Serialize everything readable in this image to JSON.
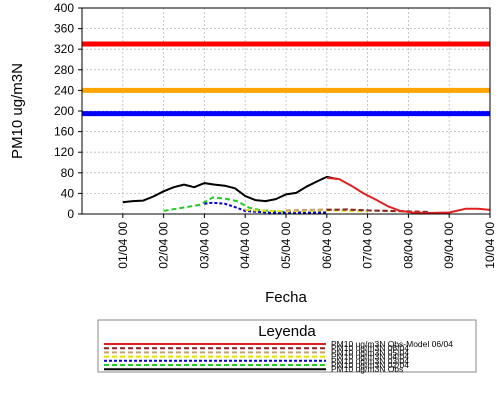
{
  "chart_data": {
    "type": "line",
    "title": "",
    "xlabel": "Fecha",
    "ylabel": "PM10 ug/m3N",
    "ylim": [
      0,
      400
    ],
    "xlim": [
      0,
      10
    ],
    "y_ticks": [
      0,
      40,
      80,
      120,
      160,
      200,
      240,
      280,
      320,
      360,
      400
    ],
    "x_ticks": [
      1,
      2,
      3,
      4,
      5,
      6,
      7,
      8,
      9,
      10
    ],
    "x_tick_labels": [
      "01/04 00",
      "02/04 00",
      "03/04 00",
      "04/04 00",
      "05/04 00",
      "06/04 00",
      "07/04 00",
      "08/04 00",
      "09/04 00",
      "10/04 00"
    ],
    "grid": true,
    "thresholds": [
      {
        "value": 330,
        "color": "#ff0000"
      },
      {
        "value": 240,
        "color": "#ffa500"
      },
      {
        "value": 195,
        "color": "#0000ff"
      }
    ],
    "series": [
      {
        "name": "PM10 ug/m3N Obs-Model 06/04",
        "color": "#e02020",
        "dash": "",
        "x": [
          6,
          6.3,
          6.6,
          6.9,
          7.2,
          7.5,
          7.8,
          8.1,
          8.5,
          9.0,
          9.4,
          9.7,
          10.0
        ],
        "y": [
          70,
          68,
          55,
          40,
          28,
          15,
          6,
          3,
          2,
          3,
          10,
          10,
          8
        ]
      },
      {
        "name": "PM10 ug/m3N 06/04",
        "color": "#8b2020",
        "dash": "5,3",
        "x": [
          6,
          6.5,
          7,
          7.5,
          8,
          8.5
        ],
        "y": [
          8,
          9,
          7,
          6,
          5,
          4
        ]
      },
      {
        "name": "PM10 ug/m3N 05/04",
        "color": "#c8a070",
        "dash": "5,3",
        "x": [
          5,
          5.5,
          6,
          6.5,
          7,
          7.5,
          8
        ],
        "y": [
          7,
          8,
          9,
          8,
          7,
          6,
          5
        ]
      },
      {
        "name": "PM10 ug/m3N 04/04",
        "color": "#e8e000",
        "dash": "5,3",
        "x": [
          4,
          4.5,
          5,
          5.5,
          6,
          6.5,
          7
        ],
        "y": [
          8,
          6,
          5,
          6,
          7,
          6,
          5
        ]
      },
      {
        "name": "PM10 ug/m3N 03/04",
        "color": "#0000cc",
        "dash": "3,2",
        "x": [
          3,
          3.2,
          3.5,
          3.8,
          4.0,
          4.3,
          4.6,
          5.0,
          5.5,
          6.0
        ],
        "y": [
          20,
          22,
          20,
          12,
          6,
          4,
          3,
          3,
          3,
          3
        ]
      },
      {
        "name": "PM10 ug/m3N 02/04",
        "color": "#22cc22",
        "dash": "5,3",
        "x": [
          2.0,
          2.3,
          2.6,
          2.9,
          3.2,
          3.5,
          3.8,
          4.1,
          4.4,
          4.8,
          5.0
        ],
        "y": [
          6,
          10,
          14,
          18,
          32,
          30,
          25,
          12,
          7,
          5,
          4
        ]
      },
      {
        "name": "PM10 ug/m3N Obs",
        "color": "#000000",
        "dash": "",
        "x": [
          1.0,
          1.25,
          1.5,
          1.75,
          2.0,
          2.25,
          2.5,
          2.75,
          3.0,
          3.25,
          3.5,
          3.75,
          4.0,
          4.25,
          4.5,
          4.75,
          5.0,
          5.25,
          5.5,
          5.75,
          6.0,
          6.25
        ],
        "y": [
          23,
          25,
          26,
          34,
          44,
          52,
          57,
          52,
          60,
          57,
          55,
          50,
          35,
          27,
          25,
          29,
          38,
          41,
          53,
          63,
          72,
          68
        ]
      }
    ],
    "legend": {
      "title": "Leyenda",
      "placement": "bottom",
      "entries": [
        {
          "label": "PM10 ug/m3N Obs-Model 06/04",
          "color": "#e02020",
          "dash": ""
        },
        {
          "label": "PM10 ug/m3N 06/04",
          "color": "#8b2020",
          "dash": "5,3"
        },
        {
          "label": "PM10 ug/m3N 05/04",
          "color": "#c8a070",
          "dash": "5,3"
        },
        {
          "label": "PM10 ug/m3N 04/04",
          "color": "#e8e000",
          "dash": "5,3"
        },
        {
          "label": "PM10 ug/m3N 03/04",
          "color": "#0000cc",
          "dash": "3,2"
        },
        {
          "label": "PM10 ug/m3N 02/04",
          "color": "#22cc22",
          "dash": "5,3"
        },
        {
          "label": "PM10 ug/m3N Obs",
          "color": "#000000",
          "dash": ""
        }
      ]
    }
  }
}
